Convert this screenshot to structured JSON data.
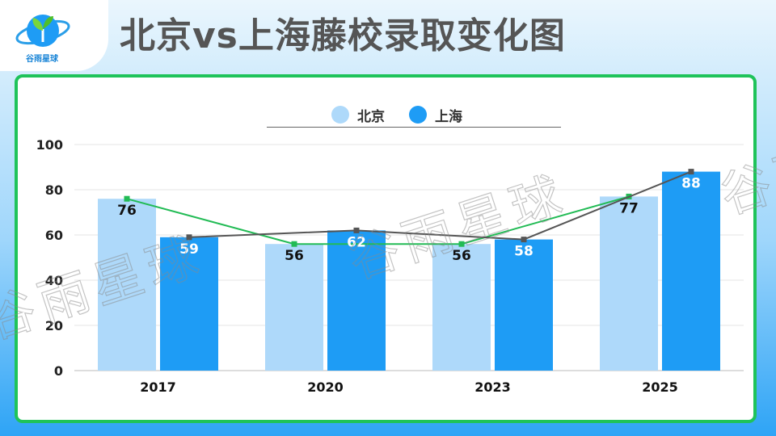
{
  "header": {
    "title": "北京vs上海藤校录取变化图",
    "logo_text": "谷雨星球"
  },
  "watermark": "谷雨星球",
  "colors": {
    "beijing_bar": "#aed9fa",
    "shanghai_bar": "#1e9cf5",
    "green_line": "#22bb55",
    "dark_line": "#555555",
    "card_border": "#1fc35a"
  },
  "chart_data": {
    "type": "bar",
    "title": "北京vs上海藤校录取变化图",
    "categories": [
      "2017",
      "2020",
      "2023",
      "2025"
    ],
    "series": [
      {
        "name": "北京",
        "values": [
          76,
          56,
          56,
          77
        ],
        "color": "#aed9fa"
      },
      {
        "name": "上海",
        "values": [
          59,
          62,
          58,
          88
        ],
        "color": "#1e9cf5"
      }
    ],
    "ylim": [
      0,
      100
    ],
    "yticks": [
      0,
      20,
      40,
      60,
      80,
      100
    ],
    "grid": true,
    "legend_position": "top-center",
    "data_labels": true,
    "overlay_lines": "trend line connecting each series' bar tops"
  }
}
